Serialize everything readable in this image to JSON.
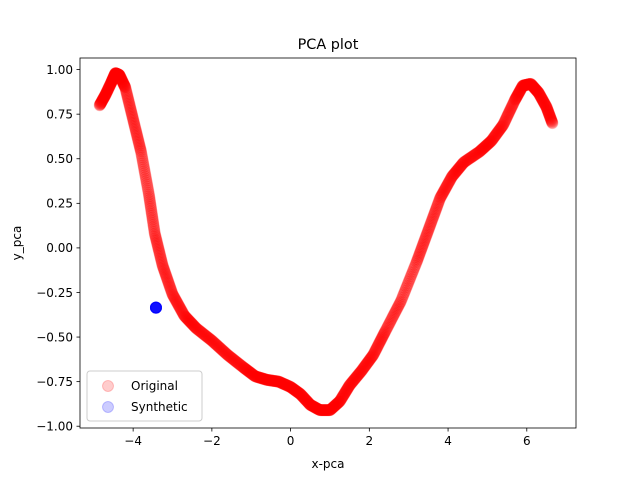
{
  "chart_data": {
    "type": "scatter",
    "title": "PCA plot",
    "xlabel": "x-pca",
    "ylabel": "y_pca",
    "xlim": [
      -5.35,
      7.25
    ],
    "ylim": [
      -1.01,
      1.065
    ],
    "x_ticks": [
      -4,
      -2,
      0,
      2,
      4,
      6
    ],
    "y_ticks": [
      -1.0,
      -0.75,
      -0.5,
      -0.25,
      0.0,
      0.25,
      0.5,
      0.75,
      1.0
    ],
    "x_tick_labels": [
      "−4",
      "−2",
      "0",
      "2",
      "4",
      "6"
    ],
    "y_tick_labels": [
      "−1.00",
      "−0.75",
      "−0.50",
      "−0.25",
      "0.00",
      "0.25",
      "0.50",
      "0.75",
      "1.00"
    ],
    "grid": false,
    "legend_position": "lower-left",
    "series": [
      {
        "name": "Original",
        "color": "#ff0000",
        "alpha": 0.2,
        "curve_points": [
          [
            -4.85,
            0.8
          ],
          [
            -4.7,
            0.86
          ],
          [
            -4.55,
            0.93
          ],
          [
            -4.45,
            0.98
          ],
          [
            -4.35,
            0.97
          ],
          [
            -4.2,
            0.9
          ],
          [
            -4.0,
            0.72
          ],
          [
            -3.8,
            0.54
          ],
          [
            -3.6,
            0.3
          ],
          [
            -3.45,
            0.08
          ],
          [
            -3.25,
            -0.1
          ],
          [
            -3.0,
            -0.26
          ],
          [
            -2.7,
            -0.38
          ],
          [
            -2.4,
            -0.45
          ],
          [
            -2.0,
            -0.52
          ],
          [
            -1.6,
            -0.6
          ],
          [
            -1.2,
            -0.67
          ],
          [
            -0.9,
            -0.72
          ],
          [
            -0.6,
            -0.74
          ],
          [
            -0.3,
            -0.75
          ],
          [
            0.0,
            -0.78
          ],
          [
            0.25,
            -0.82
          ],
          [
            0.5,
            -0.88
          ],
          [
            0.75,
            -0.91
          ],
          [
            1.0,
            -0.91
          ],
          [
            1.25,
            -0.86
          ],
          [
            1.5,
            -0.77
          ],
          [
            1.8,
            -0.69
          ],
          [
            2.1,
            -0.6
          ],
          [
            2.4,
            -0.47
          ],
          [
            2.8,
            -0.3
          ],
          [
            3.2,
            -0.08
          ],
          [
            3.5,
            0.1
          ],
          [
            3.8,
            0.28
          ],
          [
            4.1,
            0.4
          ],
          [
            4.4,
            0.48
          ],
          [
            4.8,
            0.54
          ],
          [
            5.1,
            0.6
          ],
          [
            5.4,
            0.69
          ],
          [
            5.7,
            0.83
          ],
          [
            5.9,
            0.91
          ],
          [
            6.1,
            0.92
          ],
          [
            6.3,
            0.87
          ],
          [
            6.5,
            0.79
          ],
          [
            6.65,
            0.7
          ]
        ]
      },
      {
        "name": "Synthetic",
        "color": "#0000ff",
        "alpha": 0.2,
        "points": [
          [
            -3.42,
            -0.335
          ]
        ]
      }
    ]
  }
}
